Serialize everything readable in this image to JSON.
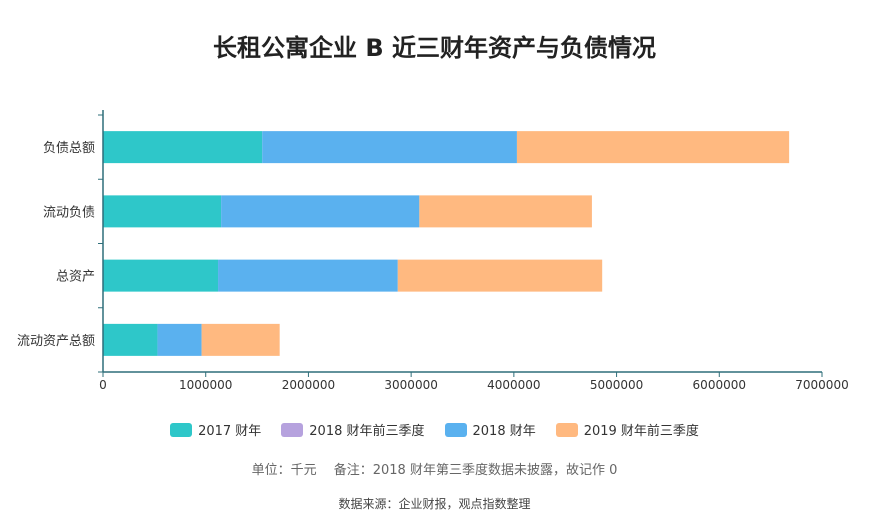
{
  "chart_data": {
    "type": "bar",
    "orientation": "horizontal",
    "stacked": true,
    "title": "长租公寓企业 B 近三财年资产与负债情况",
    "categories": [
      "负债总额",
      "流动负债",
      "总资产",
      "流动资产总额"
    ],
    "series": [
      {
        "name": "2017 财年",
        "color": "#2ec7c9",
        "values": [
          1550000,
          1150000,
          1120000,
          530000
        ]
      },
      {
        "name": "2018 财年前三季度",
        "color": "#b6a2de",
        "values": [
          0,
          0,
          0,
          0
        ]
      },
      {
        "name": "2018 财年",
        "color": "#5ab1ef",
        "values": [
          2480000,
          1930000,
          1750000,
          430000
        ]
      },
      {
        "name": "2019 财年前三季度",
        "color": "#ffb980",
        "values": [
          2650000,
          1680000,
          1990000,
          760000
        ]
      }
    ],
    "xlim": [
      0,
      7000000
    ],
    "xticks": [
      "0",
      "1000000",
      "2000000",
      "3000000",
      "4000000",
      "5000000",
      "6000000",
      "7000000"
    ],
    "grid": false,
    "legend_position": "bottom"
  },
  "note": "单位：千元　 备注：2018 财年第三季度数据未披露，故记作 0",
  "source": "数据来源：企业财报，观点指数整理"
}
